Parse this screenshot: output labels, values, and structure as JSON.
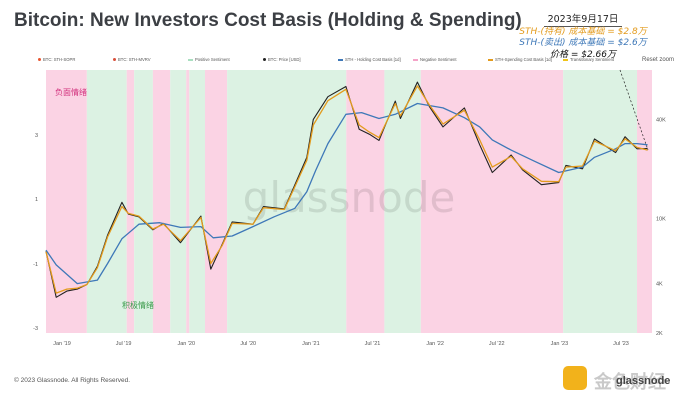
{
  "title": "Bitcoin: New Investors Cost Basis (Holding & Spending)",
  "annotation": {
    "date": "2023年9月17日",
    "holding": "STH-(持有) 成本基础 = $2.8万",
    "spending": "STH-(卖出) 成本基础 = $2.6万",
    "price": "价格 = $2.66万"
  },
  "legend": [
    {
      "label": "BTC: STH-SOPR",
      "color": "#e8542f",
      "shape": "dot"
    },
    {
      "label": "BTC: STH-MVRV",
      "color": "#d94f3a",
      "shape": "dot"
    },
    {
      "label": "Positive Sentiment",
      "color": "#a9dfc0",
      "shape": "line"
    },
    {
      "label": "BTC: Price [USD]",
      "color": "#222222",
      "shape": "dot"
    },
    {
      "label": "STH - Holding Cost Basis [1d]",
      "color": "#3e78b8",
      "shape": "line"
    },
    {
      "label": "Negative Sentiment",
      "color": "#f5a3c8",
      "shape": "line"
    },
    {
      "label": "STH-Spending Cost Basis [1d]",
      "color": "#e39b1d",
      "shape": "line"
    },
    {
      "label": "Transitionary Sentiment",
      "color": "#f0c419",
      "shape": "line"
    }
  ],
  "reset_label": "Reset zoom",
  "negative_label": "负面情绪",
  "positive_label": "积极情绪",
  "watermark": "glassnode",
  "copyright": "© 2023 Glassnode. All Rights Reserved.",
  "brand": "glassnode",
  "logo_text": "金色财经",
  "colors": {
    "positive": "#dcf2e3",
    "negative": "#fbd3e4",
    "price": "#222222",
    "holding": "#3e78b8",
    "spending": "#e39b1d"
  },
  "chart_data": {
    "type": "line",
    "x_axis": {
      "type": "time",
      "range": [
        "2018-11-15",
        "2023-09-30"
      ],
      "ticks": [
        "Jan '19",
        "Jul '19",
        "Jan '20",
        "Jul '20",
        "Jan '21",
        "Jul '21",
        "Jan '22",
        "Jul '22",
        "Jan '23",
        "Jul '23"
      ]
    },
    "y_left": {
      "ticks": [
        "3",
        "1",
        "-1",
        "-3"
      ]
    },
    "y_right": {
      "scale": "log",
      "range": [
        2000,
        80000
      ],
      "ticks": [
        {
          "label": "40K",
          "value": 40000
        },
        {
          "label": "10K",
          "value": 10000
        },
        {
          "label": "4K",
          "value": 4000
        },
        {
          "label": "2K",
          "value": 2000
        }
      ]
    },
    "sentiment_regions": [
      {
        "start": "2018-11-15",
        "end": "2019-03-15",
        "sentiment": "negative"
      },
      {
        "start": "2019-03-15",
        "end": "2019-07-10",
        "sentiment": "positive"
      },
      {
        "start": "2019-07-10",
        "end": "2019-08-01",
        "sentiment": "negative"
      },
      {
        "start": "2019-08-01",
        "end": "2019-09-25",
        "sentiment": "positive"
      },
      {
        "start": "2019-09-25",
        "end": "2019-11-15",
        "sentiment": "negative"
      },
      {
        "start": "2019-11-15",
        "end": "2020-01-01",
        "sentiment": "positive"
      },
      {
        "start": "2020-01-01",
        "end": "2020-01-10",
        "sentiment": "negative"
      },
      {
        "start": "2020-01-10",
        "end": "2020-02-25",
        "sentiment": "positive"
      },
      {
        "start": "2020-02-25",
        "end": "2020-04-30",
        "sentiment": "negative"
      },
      {
        "start": "2020-04-30",
        "end": "2021-04-15",
        "sentiment": "positive"
      },
      {
        "start": "2021-04-15",
        "end": "2021-08-05",
        "sentiment": "negative"
      },
      {
        "start": "2021-08-05",
        "end": "2021-11-20",
        "sentiment": "positive"
      },
      {
        "start": "2021-11-20",
        "end": "2023-01-12",
        "sentiment": "negative"
      },
      {
        "start": "2023-01-12",
        "end": "2023-08-17",
        "sentiment": "positive"
      },
      {
        "start": "2023-08-17",
        "end": "2023-09-30",
        "sentiment": "negative"
      }
    ],
    "series": [
      {
        "name": "BTC: Price [USD]",
        "color": "#222222",
        "points": [
          [
            "2018-11-15",
            6300
          ],
          [
            "2018-12-15",
            3300
          ],
          [
            "2019-01-15",
            3600
          ],
          [
            "2019-02-15",
            3700
          ],
          [
            "2019-03-15",
            3950
          ],
          [
            "2019-04-15",
            5100
          ],
          [
            "2019-05-15",
            7900
          ],
          [
            "2019-06-26",
            12500
          ],
          [
            "2019-07-15",
            10600
          ],
          [
            "2019-08-15",
            10200
          ],
          [
            "2019-09-25",
            8500
          ],
          [
            "2019-10-26",
            9300
          ],
          [
            "2019-12-15",
            7100
          ],
          [
            "2020-02-13",
            10300
          ],
          [
            "2020-03-13",
            4900
          ],
          [
            "2020-04-15",
            6900
          ],
          [
            "2020-05-15",
            9500
          ],
          [
            "2020-07-15",
            9200
          ],
          [
            "2020-08-15",
            11800
          ],
          [
            "2020-10-15",
            11400
          ],
          [
            "2020-11-15",
            16000
          ],
          [
            "2020-12-20",
            23500
          ],
          [
            "2021-01-08",
            40000
          ],
          [
            "2021-02-20",
            55000
          ],
          [
            "2021-04-14",
            63500
          ],
          [
            "2021-05-23",
            34800
          ],
          [
            "2021-06-22",
            32500
          ],
          [
            "2021-07-20",
            29800
          ],
          [
            "2021-09-06",
            51700
          ],
          [
            "2021-09-21",
            40500
          ],
          [
            "2021-11-10",
            67500
          ],
          [
            "2021-12-15",
            48000
          ],
          [
            "2022-01-24",
            36000
          ],
          [
            "2022-03-28",
            47000
          ],
          [
            "2022-05-12",
            28000
          ],
          [
            "2022-06-18",
            19000
          ],
          [
            "2022-08-12",
            24300
          ],
          [
            "2022-09-15",
            19700
          ],
          [
            "2022-11-09",
            16000
          ],
          [
            "2022-12-30",
            16500
          ],
          [
            "2023-01-20",
            21000
          ],
          [
            "2023-03-10",
            20000
          ],
          [
            "2023-04-14",
            30400
          ],
          [
            "2023-06-15",
            25100
          ],
          [
            "2023-07-13",
            31400
          ],
          [
            "2023-08-17",
            26500
          ],
          [
            "2023-09-17",
            26600
          ]
        ]
      },
      {
        "name": "STH - Holding Cost Basis [1d]",
        "color": "#3e78b8",
        "points": [
          [
            "2018-11-15",
            6400
          ],
          [
            "2018-12-15",
            5200
          ],
          [
            "2019-02-15",
            4000
          ],
          [
            "2019-04-15",
            4200
          ],
          [
            "2019-05-15",
            5300
          ],
          [
            "2019-06-26",
            7500
          ],
          [
            "2019-08-15",
            9200
          ],
          [
            "2019-10-15",
            9400
          ],
          [
            "2019-12-15",
            8800
          ],
          [
            "2020-02-13",
            8900
          ],
          [
            "2020-03-20",
            7600
          ],
          [
            "2020-05-15",
            7800
          ],
          [
            "2020-07-15",
            8900
          ],
          [
            "2020-09-15",
            10200
          ],
          [
            "2020-11-15",
            11500
          ],
          [
            "2020-12-20",
            14500
          ],
          [
            "2021-01-15",
            19500
          ],
          [
            "2021-02-20",
            28500
          ],
          [
            "2021-04-14",
            43000
          ],
          [
            "2021-05-30",
            44000
          ],
          [
            "2021-07-20",
            40500
          ],
          [
            "2021-09-06",
            43000
          ],
          [
            "2021-11-10",
            50000
          ],
          [
            "2022-01-24",
            47000
          ],
          [
            "2022-03-28",
            41000
          ],
          [
            "2022-05-12",
            36000
          ],
          [
            "2022-06-18",
            30000
          ],
          [
            "2022-08-12",
            26000
          ],
          [
            "2022-10-15",
            22500
          ],
          [
            "2022-12-30",
            19000
          ],
          [
            "2023-03-10",
            20500
          ],
          [
            "2023-04-14",
            23500
          ],
          [
            "2023-06-15",
            26500
          ],
          [
            "2023-07-13",
            28500
          ],
          [
            "2023-08-17",
            28500
          ],
          [
            "2023-09-17",
            28000
          ]
        ]
      },
      {
        "name": "STH-Spending Cost Basis [1d]",
        "color": "#e39b1d",
        "points": [
          [
            "2018-11-15",
            6250
          ],
          [
            "2018-12-15",
            3500
          ],
          [
            "2019-01-15",
            3700
          ],
          [
            "2019-02-15",
            3750
          ],
          [
            "2019-03-15",
            3950
          ],
          [
            "2019-04-15",
            5000
          ],
          [
            "2019-05-15",
            7700
          ],
          [
            "2019-06-26",
            11800
          ],
          [
            "2019-07-15",
            10700
          ],
          [
            "2019-08-15",
            10300
          ],
          [
            "2019-09-25",
            8600
          ],
          [
            "2019-10-26",
            9200
          ],
          [
            "2019-12-15",
            7300
          ],
          [
            "2020-02-13",
            10100
          ],
          [
            "2020-03-13",
            5300
          ],
          [
            "2020-04-15",
            6800
          ],
          [
            "2020-05-15",
            9300
          ],
          [
            "2020-07-15",
            9200
          ],
          [
            "2020-08-15",
            11600
          ],
          [
            "2020-10-15",
            11300
          ],
          [
            "2020-11-15",
            15600
          ],
          [
            "2020-12-20",
            22500
          ],
          [
            "2021-01-08",
            37000
          ],
          [
            "2021-02-20",
            52000
          ],
          [
            "2021-04-14",
            61000
          ],
          [
            "2021-05-23",
            37000
          ],
          [
            "2021-06-22",
            33500
          ],
          [
            "2021-07-20",
            31000
          ],
          [
            "2021-09-06",
            50000
          ],
          [
            "2021-09-21",
            42000
          ],
          [
            "2021-11-10",
            64000
          ],
          [
            "2021-12-15",
            49000
          ],
          [
            "2022-01-24",
            37500
          ],
          [
            "2022-03-28",
            45500
          ],
          [
            "2022-05-12",
            30000
          ],
          [
            "2022-06-18",
            20500
          ],
          [
            "2022-08-12",
            23800
          ],
          [
            "2022-09-15",
            20000
          ],
          [
            "2022-11-09",
            16800
          ],
          [
            "2022-12-30",
            16700
          ],
          [
            "2023-01-20",
            20500
          ],
          [
            "2023-03-10",
            20800
          ],
          [
            "2023-04-14",
            29500
          ],
          [
            "2023-06-15",
            25800
          ],
          [
            "2023-07-13",
            30500
          ],
          [
            "2023-08-17",
            27000
          ],
          [
            "2023-09-17",
            26000
          ]
        ]
      }
    ]
  }
}
